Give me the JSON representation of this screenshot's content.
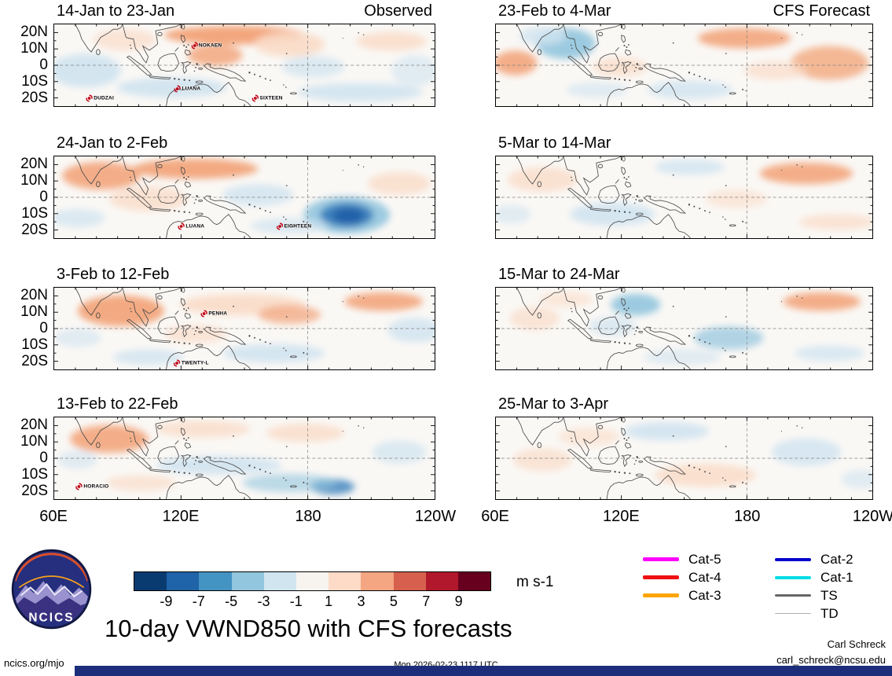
{
  "title": "10-day VWND850 with CFS forecasts",
  "logo_text": "NCICS",
  "footer": {
    "site": "ncics.org/mjo",
    "timestamp": "Mon 2026-02-23 1117 UTC",
    "credit_name": "Carl Schreck",
    "credit_email": "carl_schreck@ncsu.edu"
  },
  "chart_data": {
    "type": "heatmap",
    "variable": "VWND850",
    "units": "m s-1",
    "column_labels": [
      "Observed",
      "CFS Forecast"
    ],
    "x_ticks": [
      "60E",
      "120E",
      "180",
      "120W"
    ],
    "y_ticks": [
      "20N",
      "10N",
      "0",
      "10S",
      "20S"
    ],
    "lon_range": [
      "60E",
      "120W"
    ],
    "lat_range": [
      "25N",
      "25S"
    ],
    "panels": [
      {
        "title": "14-Jan to 23-Jan",
        "corner": "Observed",
        "storms": [
          {
            "name": "NOKAEN",
            "x": 40,
            "y": 26
          },
          {
            "name": "DUDZAI",
            "x": 12,
            "y": 90
          },
          {
            "name": "LUANA",
            "x": 35,
            "y": 79
          },
          {
            "name": "SIXTEEN",
            "x": 56,
            "y": 90
          }
        ],
        "blobs": [
          [
            40,
            60,
            45,
            22,
            "#cfe3f0",
            0.9
          ],
          [
            90,
            20,
            40,
            14,
            "#fadcc8",
            0.7
          ],
          [
            230,
            14,
            90,
            12,
            "#f2a176",
            0.95
          ],
          [
            205,
            40,
            35,
            14,
            "#f2a176",
            0.8
          ],
          [
            300,
            26,
            45,
            16,
            "#fadcc8",
            0.9
          ],
          [
            430,
            22,
            45,
            12,
            "#fadcc8",
            0.85
          ],
          [
            150,
            82,
            70,
            13,
            "#cfe3f0",
            0.9
          ],
          [
            390,
            88,
            80,
            12,
            "#cfe3f0",
            0.85
          ],
          [
            330,
            55,
            40,
            14,
            "#cfe3f0",
            0.7
          ],
          [
            460,
            60,
            30,
            20,
            "#cfe3f0",
            0.6
          ]
        ]
      },
      {
        "title": "24-Jan to 2-Feb",
        "corner": "",
        "storms": [
          {
            "name": "LUANA",
            "x": 36,
            "y": 86
          },
          {
            "name": "EIGHTEEN",
            "x": 63,
            "y": 86
          }
        ],
        "blobs": [
          [
            60,
            25,
            50,
            18,
            "#f2a176",
            0.85
          ],
          [
            180,
            16,
            80,
            13,
            "#f2a176",
            0.9
          ],
          [
            120,
            55,
            50,
            16,
            "#fadcc8",
            0.8
          ],
          [
            260,
            50,
            45,
            14,
            "#cfe3f0",
            0.8
          ],
          [
            373,
            76,
            55,
            24,
            "#92c5de",
            0.9
          ],
          [
            373,
            76,
            34,
            16,
            "#3a7fbd",
            0.95
          ],
          [
            375,
            77,
            20,
            10,
            "#1f5fa8",
            0.95
          ],
          [
            440,
            35,
            40,
            15,
            "#fadcc8",
            0.8
          ],
          [
            300,
            90,
            50,
            10,
            "#cfe3f0",
            0.7
          ],
          [
            30,
            80,
            35,
            12,
            "#cfe3f0",
            0.7
          ]
        ]
      },
      {
        "title": "3-Feb to 12-Feb",
        "corner": "",
        "storms": [
          {
            "name": "PENHA",
            "x": 42,
            "y": 32
          },
          {
            "name": "TWENTY-L",
            "x": 36,
            "y": 92
          }
        ],
        "blobs": [
          [
            85,
            30,
            55,
            20,
            "#f2a176",
            0.9
          ],
          [
            240,
            22,
            80,
            14,
            "#fadcc8",
            0.9
          ],
          [
            300,
            35,
            40,
            12,
            "#f2a176",
            0.7
          ],
          [
            420,
            18,
            50,
            12,
            "#f2a176",
            0.85
          ],
          [
            460,
            55,
            35,
            16,
            "#cfe3f0",
            0.8
          ],
          [
            280,
            85,
            65,
            12,
            "#cfe3f0",
            0.85
          ],
          [
            120,
            90,
            45,
            10,
            "#cfe3f0",
            0.8
          ],
          [
            180,
            60,
            40,
            12,
            "#fadcc8",
            0.7
          ],
          [
            30,
            65,
            30,
            12,
            "#cfe3f0",
            0.6
          ]
        ]
      },
      {
        "title": "13-Feb to 22-Feb",
        "corner": "",
        "storms": [
          {
            "name": "HORACIO",
            "x": 10,
            "y": 85
          }
        ],
        "blobs": [
          [
            70,
            28,
            50,
            18,
            "#f2a176",
            0.85
          ],
          [
            190,
            15,
            60,
            11,
            "#fadcc8",
            0.8
          ],
          [
            320,
            20,
            50,
            12,
            "#fadcc8",
            0.8
          ],
          [
            210,
            62,
            80,
            12,
            "#cfe3f0",
            0.85
          ],
          [
            355,
            90,
            28,
            10,
            "#3a7fbd",
            0.8
          ],
          [
            300,
            85,
            60,
            12,
            "#92c5de",
            0.6
          ],
          [
            110,
            85,
            45,
            10,
            "#fadcc8",
            0.7
          ],
          [
            440,
            45,
            35,
            15,
            "#cfe3f0",
            0.7
          ],
          [
            30,
            55,
            25,
            12,
            "#cfe3f0",
            0.6
          ]
        ]
      },
      {
        "title": "23-Feb to 4-Mar",
        "corner": "CFS Forecast",
        "storms": [],
        "blobs": [
          [
            90,
            25,
            38,
            20,
            "#92c5de",
            0.9
          ],
          [
            60,
            15,
            30,
            12,
            "#cfe3f0",
            0.8
          ],
          [
            25,
            50,
            28,
            16,
            "#f2a176",
            0.85
          ],
          [
            160,
            55,
            35,
            12,
            "#fadcc8",
            0.8
          ],
          [
            320,
            18,
            60,
            13,
            "#f2a176",
            0.85
          ],
          [
            430,
            50,
            50,
            22,
            "#f2a176",
            0.75
          ],
          [
            250,
            85,
            55,
            12,
            "#cfe3f0",
            0.8
          ],
          [
            360,
            60,
            40,
            12,
            "#fadcc8",
            0.7
          ],
          [
            130,
            85,
            40,
            10,
            "#cfe3f0",
            0.6
          ]
        ]
      },
      {
        "title": "5-Mar to 14-Mar",
        "corner": "",
        "storms": [],
        "blobs": [
          [
            60,
            30,
            45,
            16,
            "#fadcc8",
            0.8
          ],
          [
            250,
            14,
            45,
            10,
            "#cfe3f0",
            0.8
          ],
          [
            150,
            75,
            55,
            15,
            "#cfe3f0",
            0.85
          ],
          [
            400,
            22,
            60,
            14,
            "#f2a176",
            0.85
          ],
          [
            440,
            85,
            50,
            10,
            "#fadcc8",
            0.75
          ],
          [
            310,
            55,
            40,
            12,
            "#fadcc8",
            0.6
          ],
          [
            20,
            75,
            25,
            12,
            "#cfe3f0",
            0.6
          ]
        ]
      },
      {
        "title": "15-Mar to 24-Mar",
        "corner": "",
        "storms": [],
        "blobs": [
          [
            180,
            22,
            32,
            14,
            "#92c5de",
            0.9
          ],
          [
            150,
            50,
            30,
            12,
            "#cfe3f0",
            0.7
          ],
          [
            420,
            18,
            50,
            12,
            "#f2a176",
            0.85
          ],
          [
            300,
            65,
            45,
            15,
            "#92c5de",
            0.7
          ],
          [
            50,
            40,
            32,
            15,
            "#fadcc8",
            0.7
          ],
          [
            430,
            85,
            45,
            10,
            "#cfe3f0",
            0.75
          ],
          [
            240,
            90,
            50,
            10,
            "#cfe3f0",
            0.6
          ],
          [
            90,
            15,
            35,
            10,
            "#fadcc8",
            0.6
          ]
        ]
      },
      {
        "title": "25-Mar to 3-Apr",
        "corner": "",
        "storms": [],
        "blobs": [
          [
            220,
            18,
            55,
            12,
            "#cfe3f0",
            0.85
          ],
          [
            270,
            75,
            65,
            15,
            "#fadcc8",
            0.85
          ],
          [
            400,
            45,
            45,
            18,
            "#cfe3f0",
            0.8
          ],
          [
            60,
            55,
            38,
            15,
            "#fadcc8",
            0.7
          ],
          [
            120,
            25,
            40,
            12,
            "#fadcc8",
            0.6
          ],
          [
            470,
            80,
            25,
            12,
            "#cfe3f0",
            0.6
          ]
        ]
      }
    ],
    "colorbar": {
      "ticks": [
        "-9",
        "-7",
        "-5",
        "-3",
        "-1",
        "1",
        "3",
        "5",
        "7",
        "9"
      ],
      "colors": [
        "#0a3b70",
        "#1f63a8",
        "#4393c3",
        "#92c5de",
        "#d1e5f0",
        "#f7f4f0",
        "#fddbc7",
        "#f4a582",
        "#d6604d",
        "#b2182b",
        "#67001f"
      ],
      "label": "m s-1"
    },
    "legend": [
      {
        "label": "Cat-5",
        "color": "#ff00ff",
        "width": 5,
        "col": 0
      },
      {
        "label": "Cat-4",
        "color": "#ee1111",
        "width": 5,
        "col": 0
      },
      {
        "label": "Cat-3",
        "color": "#ffa500",
        "width": 5,
        "col": 0
      },
      {
        "label": "Cat-2",
        "color": "#0000cc",
        "width": 4,
        "col": 1
      },
      {
        "label": "Cat-1",
        "color": "#00dde5",
        "width": 4,
        "col": 1
      },
      {
        "label": "TS",
        "color": "#666666",
        "width": 2.5,
        "col": 1
      },
      {
        "label": "TD",
        "color": "#b0b0b0",
        "width": 1.5,
        "col": 1
      }
    ]
  }
}
